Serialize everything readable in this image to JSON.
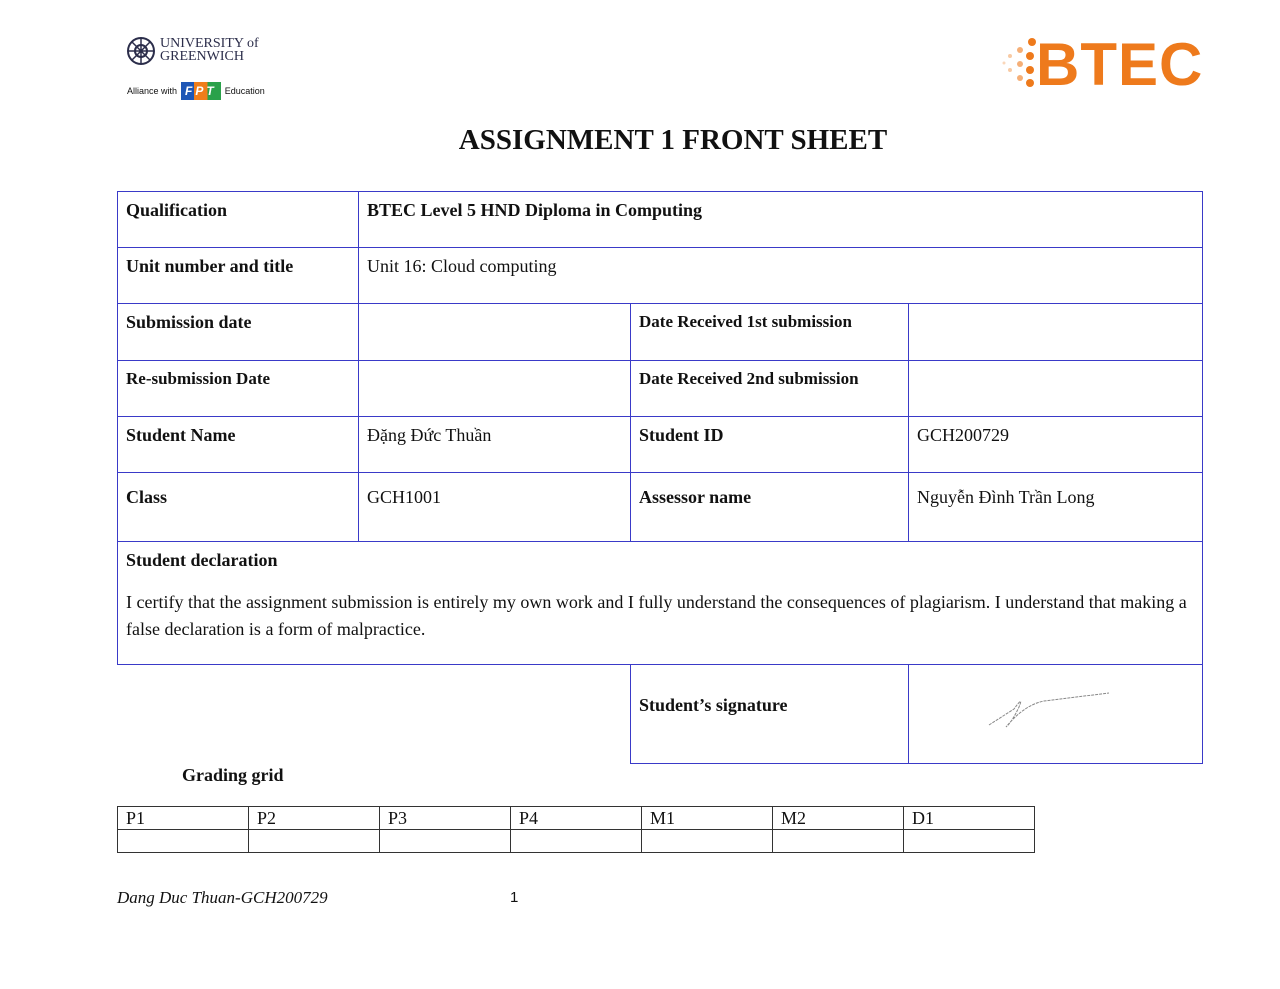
{
  "logos": {
    "greenwich": "UNIVERSITY of GREENWICH",
    "alliance": "Alliance with",
    "fpt": "FPT",
    "education": "Education",
    "btec": "BTEC",
    "brand_orange": "#ee7a1c"
  },
  "title": "ASSIGNMENT 1 FRONT SHEET",
  "rows": {
    "qualification_label": "Qualification",
    "qualification": "BTEC Level 5 HND Diploma in Computing",
    "unit_label": "Unit number and title",
    "unit": "Unit 16: Cloud computing",
    "submission_label": "Submission date",
    "received1_label": "Date Received 1st submission",
    "resubmission_label": "Re-submission Date",
    "received2_label": "Date Received 2nd submission",
    "student_name_label": "Student Name",
    "student_name": "Đặng Đức Thuần",
    "student_id_label": "Student ID",
    "student_id": "GCH200729",
    "class_label": "Class",
    "class": "GCH1001",
    "assessor_label": "Assessor name",
    "assessor": "Nguyễn Đình Trần Long"
  },
  "declaration": {
    "title": "Student declaration",
    "text": "I certify that the assignment submission is entirely my own work and I fully understand the consequences of plagiarism. I understand that making a false declaration is a form of malpractice."
  },
  "signature_label": "Student’s signature",
  "grading": {
    "title": "Grading grid",
    "headers": [
      "P1",
      "P2",
      "P3",
      "P4",
      "M1",
      "M2",
      "D1"
    ]
  },
  "footer": {
    "author": "Dang Duc Thuan-GCH200729",
    "page": "1"
  }
}
